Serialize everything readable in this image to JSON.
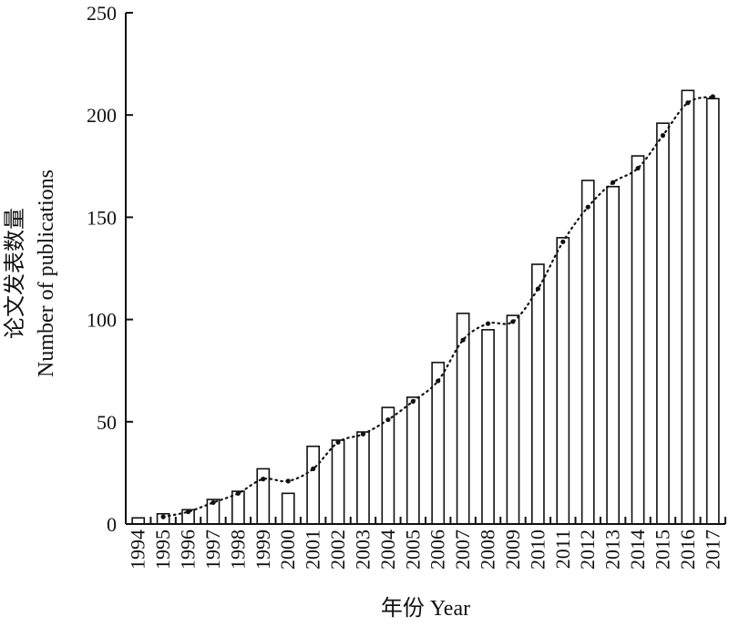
{
  "chart_data": {
    "type": "bar",
    "categories": [
      "1994",
      "1995",
      "1996",
      "1997",
      "1998",
      "1999",
      "2000",
      "2001",
      "2002",
      "2003",
      "2004",
      "2005",
      "2006",
      "2007",
      "2008",
      "2009",
      "2010",
      "2011",
      "2012",
      "2013",
      "2014",
      "2015",
      "2016",
      "2017"
    ],
    "values": [
      3,
      5,
      7,
      12,
      16,
      27,
      15,
      38,
      41,
      45,
      57,
      62,
      79,
      103,
      95,
      102,
      127,
      140,
      168,
      165,
      180,
      196,
      212,
      208
    ],
    "trend_line": {
      "style": "dotted",
      "values": [
        null,
        3.5,
        6,
        10.5,
        15,
        22,
        21,
        27,
        40,
        44,
        51,
        60,
        70,
        90,
        98,
        99,
        115,
        138,
        155,
        167,
        174,
        190,
        206,
        209
      ]
    },
    "ylim": [
      0,
      250
    ],
    "yticks": [
      0,
      50,
      100,
      150,
      200,
      250
    ],
    "xlabel": "年份 Year",
    "ylabel_cn": "论文发表数量",
    "ylabel_en": "Number of publications",
    "grid": false,
    "legend": "none",
    "colors": {
      "bar_fill": "#ffffff",
      "bar_stroke": "#111111",
      "line": "#111111"
    }
  }
}
